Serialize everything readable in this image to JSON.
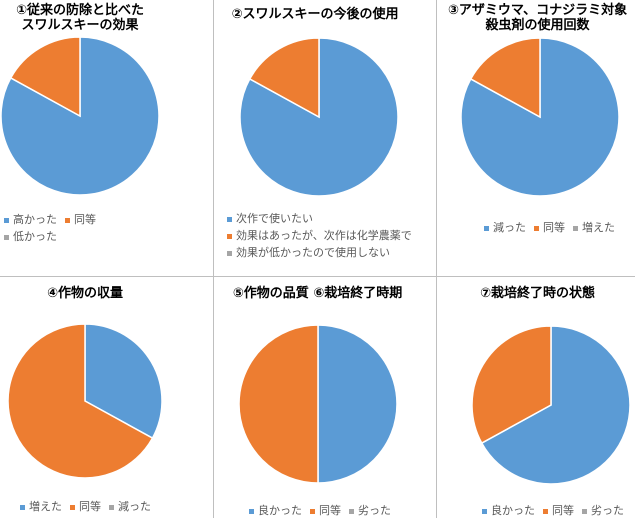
{
  "colors": {
    "blue": "#5b9bd5",
    "orange": "#ed7d31",
    "gray": "#a5a5a5"
  },
  "chart_data": [
    {
      "type": "pie",
      "title": "①従来の防除と比べた\nスワルスキーの効果",
      "categories": [
        "高かった",
        "同等",
        "低かった"
      ],
      "values": [
        83,
        17,
        0
      ],
      "colors": [
        "#5b9bd5",
        "#ed7d31",
        "#a5a5a5"
      ]
    },
    {
      "type": "pie",
      "title": "②スワルスキーの今後の使用",
      "categories": [
        "次作で使いたい",
        "効果はあったが、次作は化学農薬で",
        "効果が低かったので使用しない"
      ],
      "values": [
        83,
        17,
        0
      ],
      "colors": [
        "#5b9bd5",
        "#ed7d31",
        "#a5a5a5"
      ]
    },
    {
      "type": "pie",
      "title": "③アザミウマ、コナジラミ対象\n殺虫剤の使用回数",
      "categories": [
        "減った",
        "同等",
        "増えた"
      ],
      "values": [
        83,
        17,
        0
      ],
      "colors": [
        "#5b9bd5",
        "#ed7d31",
        "#a5a5a5"
      ]
    },
    {
      "type": "pie",
      "title": "④作物の収量",
      "categories": [
        "増えた",
        "同等",
        "減った"
      ],
      "values": [
        33,
        67,
        0
      ],
      "colors": [
        "#5b9bd5",
        "#ed7d31",
        "#a5a5a5"
      ]
    },
    {
      "type": "pie",
      "title": "⑤作物の品質 ⑥栽培終了時期",
      "categories": [
        "良かった",
        "同等",
        "劣った"
      ],
      "values": [
        50,
        50,
        0
      ],
      "colors": [
        "#5b9bd5",
        "#ed7d31",
        "#a5a5a5"
      ]
    },
    {
      "type": "pie",
      "title": "⑦栽培終了時の状態",
      "categories": [
        "良かった",
        "同等",
        "劣った"
      ],
      "values": [
        67,
        33,
        0
      ],
      "colors": [
        "#5b9bd5",
        "#ed7d31",
        "#a5a5a5"
      ]
    }
  ]
}
